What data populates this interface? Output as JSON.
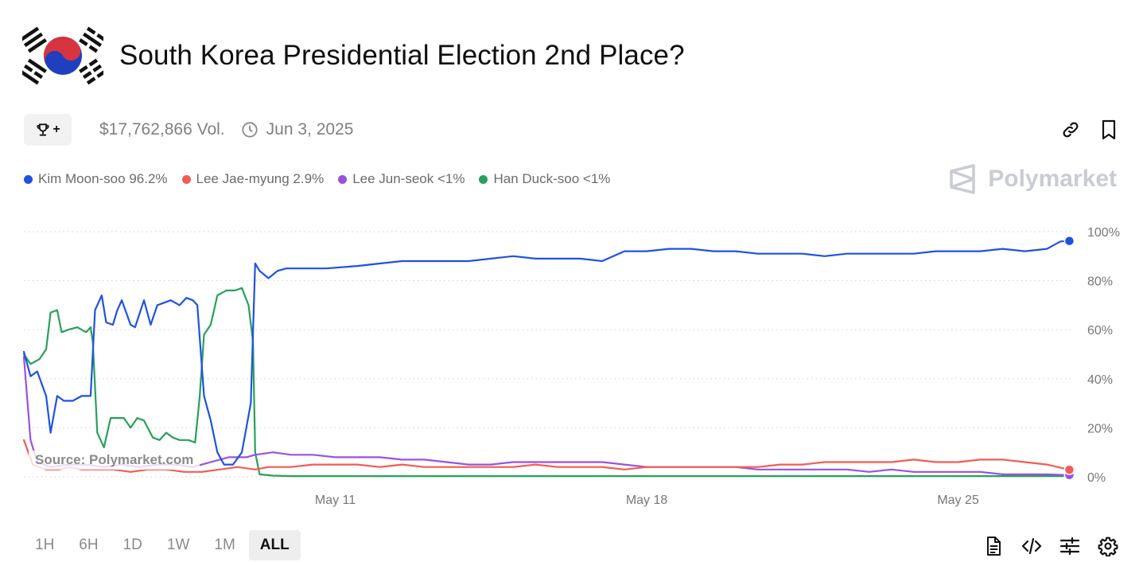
{
  "header": {
    "title": "South Korea Presidential Election 2nd Place?",
    "flag_icon": "south-korea-flag-icon"
  },
  "meta": {
    "trophy_icon": "trophy-icon",
    "trophy_plus": "+",
    "volume": "$17,762,866 Vol.",
    "clock_icon": "clock-icon",
    "end_date": "Jun 3, 2025"
  },
  "actions": {
    "link_icon": "link-icon",
    "bookmark_icon": "bookmark-icon"
  },
  "legend": [
    {
      "label": "Kim Moon-soo 96.2%",
      "color": "#1f52e0"
    },
    {
      "label": "Lee Jae-myung 2.9%",
      "color": "#f25c54"
    },
    {
      "label": "Lee Jun-seok <1%",
      "color": "#9b51e0"
    },
    {
      "label": "Han Duck-soo <1%",
      "color": "#27a05a"
    }
  ],
  "brand": {
    "name": "Polymarket"
  },
  "source": "Source: Polymarket.com",
  "timeframes": [
    {
      "label": "1H",
      "active": false
    },
    {
      "label": "6H",
      "active": false
    },
    {
      "label": "1D",
      "active": false
    },
    {
      "label": "1W",
      "active": false
    },
    {
      "label": "1M",
      "active": false
    },
    {
      "label": "ALL",
      "active": true
    }
  ],
  "bottom_actions": [
    "document-icon",
    "code-icon",
    "sliders-icon",
    "settings-icon"
  ],
  "chart_data": {
    "type": "line",
    "x_range": [
      "May 4",
      "May 31"
    ],
    "xticks": [
      {
        "label": "May 11",
        "x": 7
      },
      {
        "label": "May 18",
        "x": 14
      },
      {
        "label": "May 25",
        "x": 21
      }
    ],
    "yticks": [
      0,
      20,
      40,
      60,
      80,
      100
    ],
    "ytick_labels": [
      "0%",
      "20%",
      "40%",
      "60%",
      "80%",
      "100%"
    ],
    "ylim": [
      0,
      100
    ],
    "xlim": [
      0,
      23.6
    ],
    "grid": true,
    "series": [
      {
        "name": "Kim Moon-soo",
        "color": "#1f52e0",
        "points": [
          [
            0,
            51
          ],
          [
            0.15,
            41
          ],
          [
            0.3,
            43
          ],
          [
            0.5,
            33
          ],
          [
            0.6,
            18
          ],
          [
            0.75,
            33
          ],
          [
            0.9,
            31
          ],
          [
            1.1,
            31
          ],
          [
            1.3,
            33
          ],
          [
            1.5,
            33
          ],
          [
            1.6,
            68
          ],
          [
            1.75,
            74
          ],
          [
            1.85,
            63
          ],
          [
            2.0,
            62
          ],
          [
            2.1,
            68
          ],
          [
            2.2,
            72
          ],
          [
            2.4,
            62
          ],
          [
            2.5,
            61
          ],
          [
            2.7,
            72
          ],
          [
            2.85,
            62
          ],
          [
            3.0,
            70
          ],
          [
            3.15,
            71
          ],
          [
            3.3,
            72
          ],
          [
            3.5,
            70
          ],
          [
            3.65,
            73
          ],
          [
            3.8,
            72
          ],
          [
            3.9,
            70
          ],
          [
            4.05,
            33
          ],
          [
            4.2,
            23
          ],
          [
            4.35,
            10
          ],
          [
            4.5,
            5
          ],
          [
            4.7,
            5
          ],
          [
            4.9,
            10
          ],
          [
            5.1,
            30
          ],
          [
            5.2,
            87
          ],
          [
            5.3,
            84
          ],
          [
            5.5,
            81
          ],
          [
            5.7,
            84
          ],
          [
            5.9,
            85
          ],
          [
            6.3,
            85
          ],
          [
            6.8,
            85
          ],
          [
            7.5,
            86
          ],
          [
            8.0,
            87
          ],
          [
            8.5,
            88
          ],
          [
            9.0,
            88
          ],
          [
            9.5,
            88
          ],
          [
            10.0,
            88
          ],
          [
            10.5,
            89
          ],
          [
            11.0,
            90
          ],
          [
            11.5,
            89
          ],
          [
            12.0,
            89
          ],
          [
            12.5,
            89
          ],
          [
            13.0,
            88
          ],
          [
            13.5,
            92
          ],
          [
            14.0,
            92
          ],
          [
            14.5,
            93
          ],
          [
            15.0,
            93
          ],
          [
            15.5,
            92
          ],
          [
            16.0,
            92
          ],
          [
            16.5,
            91
          ],
          [
            17.0,
            91
          ],
          [
            17.5,
            91
          ],
          [
            18.0,
            90
          ],
          [
            18.5,
            91
          ],
          [
            19.0,
            91
          ],
          [
            19.5,
            91
          ],
          [
            20.0,
            91
          ],
          [
            20.5,
            92
          ],
          [
            21.0,
            92
          ],
          [
            21.5,
            92
          ],
          [
            22.0,
            93
          ],
          [
            22.5,
            92
          ],
          [
            23.0,
            93
          ],
          [
            23.3,
            96
          ],
          [
            23.5,
            96.2
          ]
        ]
      },
      {
        "name": "Lee Jae-myung",
        "color": "#f25c54",
        "points": [
          [
            0,
            15
          ],
          [
            0.2,
            5
          ],
          [
            0.5,
            3
          ],
          [
            0.8,
            3
          ],
          [
            1.0,
            4
          ],
          [
            1.3,
            3
          ],
          [
            1.6,
            3
          ],
          [
            2.0,
            3
          ],
          [
            2.4,
            2
          ],
          [
            2.8,
            3
          ],
          [
            3.2,
            3
          ],
          [
            3.6,
            2
          ],
          [
            4.0,
            2
          ],
          [
            4.4,
            3
          ],
          [
            4.8,
            4
          ],
          [
            5.2,
            3
          ],
          [
            5.5,
            4
          ],
          [
            6.0,
            4
          ],
          [
            6.5,
            5
          ],
          [
            7.0,
            5
          ],
          [
            7.5,
            5
          ],
          [
            8.0,
            4
          ],
          [
            8.5,
            5
          ],
          [
            9.0,
            4
          ],
          [
            9.5,
            4
          ],
          [
            10.0,
            4
          ],
          [
            10.5,
            4
          ],
          [
            11.0,
            4
          ],
          [
            11.5,
            5
          ],
          [
            12.0,
            4
          ],
          [
            12.5,
            4
          ],
          [
            13.0,
            4
          ],
          [
            13.5,
            3
          ],
          [
            14.0,
            4
          ],
          [
            14.5,
            4
          ],
          [
            15.0,
            4
          ],
          [
            15.5,
            4
          ],
          [
            16.0,
            4
          ],
          [
            16.5,
            4
          ],
          [
            17.0,
            5
          ],
          [
            17.5,
            5
          ],
          [
            18.0,
            6
          ],
          [
            18.5,
            6
          ],
          [
            19.0,
            6
          ],
          [
            19.5,
            6
          ],
          [
            20.0,
            7
          ],
          [
            20.5,
            6
          ],
          [
            21.0,
            6
          ],
          [
            21.5,
            7
          ],
          [
            22.0,
            7
          ],
          [
            22.5,
            6
          ],
          [
            23.0,
            5
          ],
          [
            23.5,
            2.9
          ]
        ]
      },
      {
        "name": "Lee Jun-seok",
        "color": "#9b51e0",
        "points": [
          [
            0,
            49
          ],
          [
            0.15,
            15
          ],
          [
            0.3,
            6
          ],
          [
            0.6,
            4
          ],
          [
            1.0,
            5
          ],
          [
            1.4,
            5
          ],
          [
            1.8,
            4
          ],
          [
            2.2,
            5
          ],
          [
            2.6,
            4
          ],
          [
            3.0,
            5
          ],
          [
            3.4,
            5
          ],
          [
            3.8,
            4
          ],
          [
            4.2,
            6
          ],
          [
            4.6,
            8
          ],
          [
            5.0,
            8
          ],
          [
            5.2,
            9
          ],
          [
            5.6,
            10
          ],
          [
            6.0,
            9
          ],
          [
            6.5,
            9
          ],
          [
            7.0,
            8
          ],
          [
            7.5,
            8
          ],
          [
            8.0,
            8
          ],
          [
            8.5,
            7
          ],
          [
            9.0,
            7
          ],
          [
            9.5,
            6
          ],
          [
            10.0,
            5
          ],
          [
            10.5,
            5
          ],
          [
            11.0,
            6
          ],
          [
            11.5,
            6
          ],
          [
            12.0,
            6
          ],
          [
            12.5,
            6
          ],
          [
            13.0,
            6
          ],
          [
            13.5,
            5
          ],
          [
            14.0,
            4
          ],
          [
            14.5,
            4
          ],
          [
            15.0,
            4
          ],
          [
            15.5,
            4
          ],
          [
            16.0,
            4
          ],
          [
            16.5,
            3
          ],
          [
            17.0,
            3
          ],
          [
            17.5,
            3
          ],
          [
            18.0,
            3
          ],
          [
            18.5,
            3
          ],
          [
            19.0,
            2
          ],
          [
            19.5,
            3
          ],
          [
            20.0,
            2
          ],
          [
            20.5,
            2
          ],
          [
            21.0,
            2
          ],
          [
            21.5,
            2
          ],
          [
            22.0,
            1
          ],
          [
            22.5,
            1
          ],
          [
            23.0,
            1
          ],
          [
            23.5,
            0.7
          ]
        ]
      },
      {
        "name": "Han Duck-soo",
        "color": "#27a05a",
        "points": [
          [
            0,
            50
          ],
          [
            0.15,
            46
          ],
          [
            0.35,
            48
          ],
          [
            0.5,
            52
          ],
          [
            0.6,
            67
          ],
          [
            0.75,
            68
          ],
          [
            0.85,
            59
          ],
          [
            1.0,
            60
          ],
          [
            1.2,
            61
          ],
          [
            1.4,
            59
          ],
          [
            1.5,
            61
          ],
          [
            1.55,
            55
          ],
          [
            1.65,
            18
          ],
          [
            1.8,
            12
          ],
          [
            1.95,
            24
          ],
          [
            2.1,
            24
          ],
          [
            2.25,
            24
          ],
          [
            2.4,
            20
          ],
          [
            2.55,
            24
          ],
          [
            2.7,
            23
          ],
          [
            2.9,
            16
          ],
          [
            3.05,
            15
          ],
          [
            3.2,
            18
          ],
          [
            3.35,
            16
          ],
          [
            3.5,
            15
          ],
          [
            3.7,
            15
          ],
          [
            3.85,
            14
          ],
          [
            3.95,
            32
          ],
          [
            4.05,
            58
          ],
          [
            4.2,
            62
          ],
          [
            4.35,
            74
          ],
          [
            4.55,
            76
          ],
          [
            4.75,
            76
          ],
          [
            4.9,
            77
          ],
          [
            5.05,
            70
          ],
          [
            5.15,
            55
          ],
          [
            5.2,
            10
          ],
          [
            5.3,
            1
          ],
          [
            5.6,
            0.5
          ],
          [
            6.0,
            0.3
          ],
          [
            8.0,
            0.3
          ],
          [
            12.0,
            0.3
          ],
          [
            16.0,
            0.3
          ],
          [
            20.0,
            0.3
          ],
          [
            23.5,
            0.3
          ]
        ]
      }
    ]
  }
}
